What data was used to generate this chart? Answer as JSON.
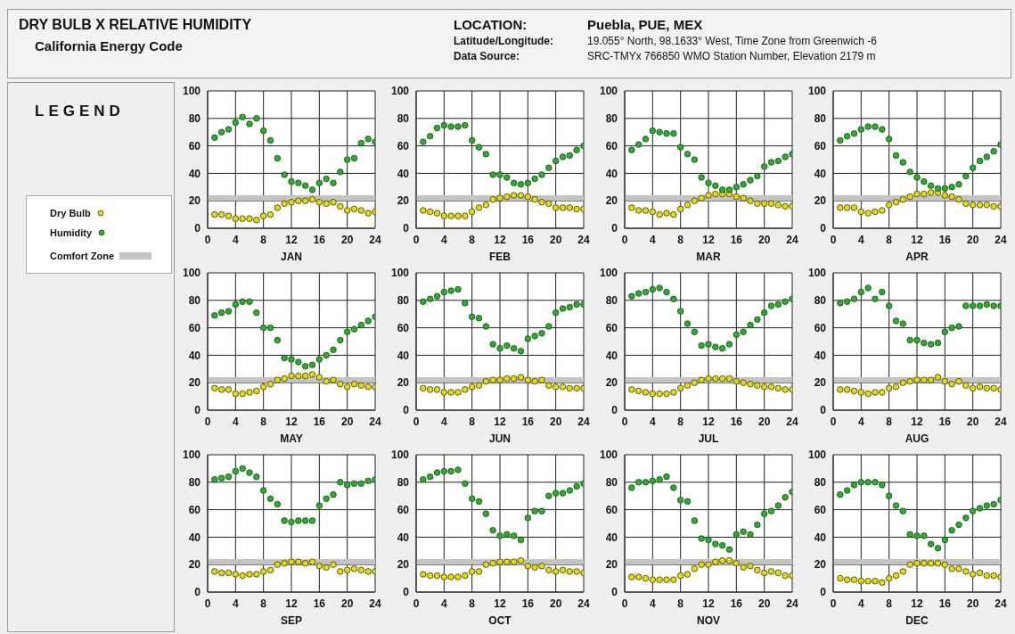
{
  "chart_data": [
    {
      "type": "scatter",
      "title": "DRY BULB  X  RELATIVE HUMIDITY",
      "subtitle": "California Energy Code",
      "annotations": [
        "LOCATION:",
        "Puebla, PUE, MEX",
        "Latitude/Longitude:",
        "19.055° North, 98.1633° West, Time Zone from Greenwich -6",
        "Data Source:",
        "SRC-TMYx    766850 WMO Station Number, Elevation 2179 m"
      ],
      "legend_title": "LEGEND",
      "legend": "left",
      "xlabel": "JAN",
      "x": [
        1,
        2,
        3,
        4,
        5,
        6,
        7,
        8,
        9,
        10,
        11,
        12,
        13,
        14,
        15,
        16,
        17,
        18,
        19,
        20,
        21,
        22,
        23,
        24
      ],
      "xlim": [
        0,
        24
      ],
      "xticks": [
        0,
        4,
        8,
        12,
        16,
        20,
        24
      ],
      "ylim": [
        0,
        100
      ],
      "yticks": [
        0,
        20,
        40,
        60,
        80,
        100
      ],
      "grid": true,
      "marker": "circle",
      "bands": [
        {
          "axis": "y",
          "from": 20,
          "to": 24,
          "label": "Comfort Zone",
          "color": "#c4c4c4"
        }
      ],
      "series": [
        {
          "name": "Dry Bulb",
          "color": "#e6dc00",
          "values": [
            10,
            10,
            9,
            7,
            7,
            7,
            6,
            9,
            10,
            15,
            18,
            19,
            20,
            20,
            21,
            19,
            18,
            19,
            16,
            13,
            14,
            13,
            11,
            12
          ]
        },
        {
          "name": "Humidity",
          "color": "#22b422",
          "values": [
            66,
            70,
            72,
            77,
            81,
            76,
            80,
            71,
            64,
            51,
            39,
            34,
            33,
            31,
            28,
            33,
            36,
            33,
            41,
            50,
            51,
            62,
            65,
            63
          ]
        }
      ]
    },
    {
      "type": "scatter",
      "xlabel": "FEB",
      "x": [
        1,
        2,
        3,
        4,
        5,
        6,
        7,
        8,
        9,
        10,
        11,
        12,
        13,
        14,
        15,
        16,
        17,
        18,
        19,
        20,
        21,
        22,
        23,
        24
      ],
      "xlim": [
        0,
        24
      ],
      "xticks": [
        0,
        4,
        8,
        12,
        16,
        20,
        24
      ],
      "ylim": [
        0,
        100
      ],
      "yticks": [
        0,
        20,
        40,
        60,
        80,
        100
      ],
      "grid": true,
      "marker": "circle",
      "bands": [
        {
          "axis": "y",
          "from": 20,
          "to": 24,
          "color": "#c4c4c4"
        }
      ],
      "series": [
        {
          "color": "#e6dc00",
          "values": [
            13,
            12,
            11,
            9,
            9,
            9,
            9,
            12,
            15,
            17,
            21,
            22,
            23,
            24,
            24,
            23,
            21,
            19,
            18,
            15,
            15,
            15,
            14,
            14
          ]
        },
        {
          "color": "#22b422",
          "values": [
            63,
            67,
            73,
            75,
            74,
            74,
            75,
            64,
            59,
            54,
            39,
            39,
            37,
            33,
            32,
            33,
            36,
            39,
            44,
            49,
            52,
            53,
            57,
            60
          ]
        }
      ]
    },
    {
      "type": "scatter",
      "xlabel": "MAR",
      "x": [
        1,
        2,
        3,
        4,
        5,
        6,
        7,
        8,
        9,
        10,
        11,
        12,
        13,
        14,
        15,
        16,
        17,
        18,
        19,
        20,
        21,
        22,
        23,
        24
      ],
      "xlim": [
        0,
        24
      ],
      "xticks": [
        0,
        4,
        8,
        12,
        16,
        20,
        24
      ],
      "ylim": [
        0,
        100
      ],
      "yticks": [
        0,
        20,
        40,
        60,
        80,
        100
      ],
      "grid": true,
      "marker": "circle",
      "bands": [
        {
          "axis": "y",
          "from": 20,
          "to": 24,
          "color": "#c4c4c4"
        }
      ],
      "series": [
        {
          "color": "#e6dc00",
          "values": [
            15,
            13,
            13,
            12,
            10,
            11,
            10,
            14,
            17,
            20,
            22,
            24,
            25,
            25,
            25,
            23,
            22,
            20,
            18,
            18,
            18,
            17,
            16,
            16
          ]
        },
        {
          "color": "#22b422",
          "values": [
            57,
            61,
            65,
            71,
            70,
            69,
            69,
            59,
            54,
            50,
            37,
            33,
            31,
            28,
            28,
            30,
            32,
            35,
            38,
            45,
            48,
            49,
            52,
            54
          ]
        }
      ]
    },
    {
      "type": "scatter",
      "xlabel": "APR",
      "x": [
        1,
        2,
        3,
        4,
        5,
        6,
        7,
        8,
        9,
        10,
        11,
        12,
        13,
        14,
        15,
        16,
        17,
        18,
        19,
        20,
        21,
        22,
        23,
        24
      ],
      "xlim": [
        0,
        24
      ],
      "xticks": [
        0,
        4,
        8,
        12,
        16,
        20,
        24
      ],
      "ylim": [
        0,
        100
      ],
      "yticks": [
        0,
        20,
        40,
        60,
        80,
        100
      ],
      "grid": true,
      "marker": "circle",
      "bands": [
        {
          "axis": "y",
          "from": 20,
          "to": 24,
          "color": "#c4c4c4"
        }
      ],
      "series": [
        {
          "color": "#e6dc00",
          "values": [
            15,
            15,
            15,
            12,
            11,
            12,
            13,
            17,
            19,
            21,
            23,
            25,
            25,
            26,
            26,
            24,
            23,
            21,
            18,
            17,
            17,
            17,
            16,
            16
          ]
        },
        {
          "color": "#22b422",
          "values": [
            64,
            67,
            69,
            72,
            74,
            74,
            72,
            65,
            53,
            48,
            41,
            37,
            34,
            31,
            29,
            29,
            30,
            32,
            38,
            44,
            49,
            52,
            56,
            61
          ]
        }
      ]
    },
    {
      "type": "scatter",
      "xlabel": "MAY",
      "x": [
        1,
        2,
        3,
        4,
        5,
        6,
        7,
        8,
        9,
        10,
        11,
        12,
        13,
        14,
        15,
        16,
        17,
        18,
        19,
        20,
        21,
        22,
        23,
        24
      ],
      "xlim": [
        0,
        24
      ],
      "xticks": [
        0,
        4,
        8,
        12,
        16,
        20,
        24
      ],
      "ylim": [
        0,
        100
      ],
      "yticks": [
        0,
        20,
        40,
        60,
        80,
        100
      ],
      "grid": true,
      "marker": "circle",
      "bands": [
        {
          "axis": "y",
          "from": 20,
          "to": 24,
          "color": "#c4c4c4"
        }
      ],
      "series": [
        {
          "color": "#e6dc00",
          "values": [
            16,
            15,
            15,
            12,
            12,
            13,
            14,
            17,
            19,
            22,
            23,
            25,
            25,
            25,
            26,
            24,
            21,
            22,
            19,
            17,
            19,
            18,
            17,
            17
          ]
        },
        {
          "color": "#22b422",
          "values": [
            69,
            71,
            72,
            77,
            79,
            79,
            71,
            60,
            60,
            51,
            38,
            37,
            35,
            32,
            33,
            37,
            40,
            44,
            51,
            57,
            59,
            62,
            65,
            68
          ]
        }
      ]
    },
    {
      "type": "scatter",
      "xlabel": "JUN",
      "x": [
        1,
        2,
        3,
        4,
        5,
        6,
        7,
        8,
        9,
        10,
        11,
        12,
        13,
        14,
        15,
        16,
        17,
        18,
        19,
        20,
        21,
        22,
        23,
        24
      ],
      "xlim": [
        0,
        24
      ],
      "xticks": [
        0,
        4,
        8,
        12,
        16,
        20,
        24
      ],
      "ylim": [
        0,
        100
      ],
      "yticks": [
        0,
        20,
        40,
        60,
        80,
        100
      ],
      "grid": true,
      "marker": "circle",
      "bands": [
        {
          "axis": "y",
          "from": 20,
          "to": 24,
          "color": "#c4c4c4"
        }
      ],
      "series": [
        {
          "color": "#e6dc00",
          "values": [
            16,
            15,
            15,
            13,
            13,
            13,
            15,
            17,
            18,
            21,
            22,
            22,
            23,
            23,
            24,
            22,
            21,
            22,
            18,
            17,
            17,
            16,
            16,
            16
          ]
        },
        {
          "color": "#22b422",
          "values": [
            79,
            81,
            83,
            86,
            87,
            88,
            78,
            68,
            67,
            61,
            48,
            45,
            47,
            45,
            43,
            52,
            54,
            56,
            61,
            71,
            74,
            75,
            77,
            77
          ]
        }
      ]
    },
    {
      "type": "scatter",
      "xlabel": "JUL",
      "x": [
        1,
        2,
        3,
        4,
        5,
        6,
        7,
        8,
        9,
        10,
        11,
        12,
        13,
        14,
        15,
        16,
        17,
        18,
        19,
        20,
        21,
        22,
        23,
        24
      ],
      "xlim": [
        0,
        24
      ],
      "xticks": [
        0,
        4,
        8,
        12,
        16,
        20,
        24
      ],
      "ylim": [
        0,
        100
      ],
      "yticks": [
        0,
        20,
        40,
        60,
        80,
        100
      ],
      "grid": true,
      "marker": "circle",
      "bands": [
        {
          "axis": "y",
          "from": 20,
          "to": 24,
          "color": "#c4c4c4"
        }
      ],
      "series": [
        {
          "color": "#e6dc00",
          "values": [
            15,
            14,
            13,
            12,
            12,
            12,
            13,
            16,
            18,
            20,
            22,
            23,
            23,
            23,
            23,
            21,
            20,
            19,
            18,
            17,
            17,
            16,
            15,
            15
          ]
        },
        {
          "color": "#22b422",
          "values": [
            83,
            85,
            86,
            88,
            89,
            86,
            81,
            72,
            63,
            57,
            47,
            48,
            46,
            45,
            48,
            55,
            57,
            62,
            66,
            71,
            76,
            77,
            79,
            81
          ]
        }
      ]
    },
    {
      "type": "scatter",
      "xlabel": "AUG",
      "x": [
        1,
        2,
        3,
        4,
        5,
        6,
        7,
        8,
        9,
        10,
        11,
        12,
        13,
        14,
        15,
        16,
        17,
        18,
        19,
        20,
        21,
        22,
        23,
        24
      ],
      "xlim": [
        0,
        24
      ],
      "xticks": [
        0,
        4,
        8,
        12,
        16,
        20,
        24
      ],
      "ylim": [
        0,
        100
      ],
      "yticks": [
        0,
        20,
        40,
        60,
        80,
        100
      ],
      "grid": true,
      "marker": "circle",
      "bands": [
        {
          "axis": "y",
          "from": 20,
          "to": 24,
          "color": "#c4c4c4"
        }
      ],
      "series": [
        {
          "color": "#e6dc00",
          "values": [
            15,
            15,
            14,
            13,
            12,
            13,
            13,
            16,
            17,
            20,
            21,
            22,
            22,
            22,
            24,
            21,
            19,
            21,
            18,
            16,
            17,
            16,
            16,
            15
          ]
        },
        {
          "color": "#22b422",
          "values": [
            78,
            79,
            81,
            86,
            89,
            81,
            86,
            76,
            65,
            63,
            51,
            51,
            49,
            48,
            49,
            57,
            60,
            61,
            76,
            76,
            76,
            77,
            76,
            76
          ]
        }
      ]
    },
    {
      "type": "scatter",
      "xlabel": "SEP",
      "x": [
        1,
        2,
        3,
        4,
        5,
        6,
        7,
        8,
        9,
        10,
        11,
        12,
        13,
        14,
        15,
        16,
        17,
        18,
        19,
        20,
        21,
        22,
        23,
        24
      ],
      "xlim": [
        0,
        24
      ],
      "xticks": [
        0,
        4,
        8,
        12,
        16,
        20,
        24
      ],
      "ylim": [
        0,
        100
      ],
      "yticks": [
        0,
        20,
        40,
        60,
        80,
        100
      ],
      "grid": true,
      "marker": "circle",
      "bands": [
        {
          "axis": "y",
          "from": 20,
          "to": 24,
          "color": "#c4c4c4"
        }
      ],
      "series": [
        {
          "color": "#e6dc00",
          "values": [
            15,
            14,
            14,
            13,
            12,
            13,
            13,
            15,
            16,
            20,
            21,
            22,
            22,
            21,
            22,
            19,
            18,
            20,
            15,
            16,
            17,
            16,
            15,
            15
          ]
        },
        {
          "color": "#22b422",
          "values": [
            82,
            83,
            84,
            88,
            90,
            87,
            84,
            74,
            68,
            64,
            52,
            51,
            52,
            52,
            52,
            63,
            68,
            71,
            80,
            78,
            79,
            79,
            81,
            82
          ]
        }
      ]
    },
    {
      "type": "scatter",
      "xlabel": "OCT",
      "x": [
        1,
        2,
        3,
        4,
        5,
        6,
        7,
        8,
        9,
        10,
        11,
        12,
        13,
        14,
        15,
        16,
        17,
        18,
        19,
        20,
        21,
        22,
        23,
        24
      ],
      "xlim": [
        0,
        24
      ],
      "xticks": [
        0,
        4,
        8,
        12,
        16,
        20,
        24
      ],
      "ylim": [
        0,
        100
      ],
      "yticks": [
        0,
        20,
        40,
        60,
        80,
        100
      ],
      "grid": true,
      "marker": "circle",
      "bands": [
        {
          "axis": "y",
          "from": 20,
          "to": 24,
          "color": "#c4c4c4"
        }
      ],
      "series": [
        {
          "color": "#e6dc00",
          "values": [
            13,
            12,
            12,
            11,
            11,
            11,
            12,
            15,
            15,
            20,
            21,
            22,
            22,
            22,
            23,
            19,
            18,
            19,
            16,
            15,
            16,
            15,
            15,
            14
          ]
        },
        {
          "color": "#22b422",
          "values": [
            82,
            84,
            87,
            88,
            88,
            89,
            79,
            68,
            66,
            57,
            45,
            41,
            42,
            41,
            38,
            54,
            59,
            59,
            70,
            72,
            72,
            74,
            77,
            79
          ]
        }
      ]
    },
    {
      "type": "scatter",
      "xlabel": "NOV",
      "x": [
        1,
        2,
        3,
        4,
        5,
        6,
        7,
        8,
        9,
        10,
        11,
        12,
        13,
        14,
        15,
        16,
        17,
        18,
        19,
        20,
        21,
        22,
        23,
        24
      ],
      "xlim": [
        0,
        24
      ],
      "xticks": [
        0,
        4,
        8,
        12,
        16,
        20,
        24
      ],
      "ylim": [
        0,
        100
      ],
      "yticks": [
        0,
        20,
        40,
        60,
        80,
        100
      ],
      "grid": true,
      "marker": "circle",
      "bands": [
        {
          "axis": "y",
          "from": 20,
          "to": 24,
          "color": "#c4c4c4"
        }
      ],
      "series": [
        {
          "color": "#e6dc00",
          "values": [
            11,
            11,
            10,
            9,
            9,
            9,
            9,
            12,
            13,
            17,
            20,
            20,
            22,
            23,
            23,
            21,
            18,
            19,
            16,
            14,
            15,
            14,
            12,
            12
          ]
        },
        {
          "color": "#22b422",
          "values": [
            76,
            80,
            80,
            81,
            82,
            84,
            76,
            67,
            66,
            52,
            39,
            38,
            35,
            34,
            31,
            42,
            44,
            42,
            49,
            57,
            59,
            63,
            69,
            73
          ]
        }
      ]
    },
    {
      "type": "scatter",
      "xlabel": "DEC",
      "x": [
        1,
        2,
        3,
        4,
        5,
        6,
        7,
        8,
        9,
        10,
        11,
        12,
        13,
        14,
        15,
        16,
        17,
        18,
        19,
        20,
        21,
        22,
        23,
        24
      ],
      "xlim": [
        0,
        24
      ],
      "xticks": [
        0,
        4,
        8,
        12,
        16,
        20,
        24
      ],
      "ylim": [
        0,
        100
      ],
      "yticks": [
        0,
        20,
        40,
        60,
        80,
        100
      ],
      "grid": true,
      "marker": "circle",
      "bands": [
        {
          "axis": "y",
          "from": 20,
          "to": 24,
          "color": "#c4c4c4"
        }
      ],
      "series": [
        {
          "color": "#e6dc00",
          "values": [
            10,
            9,
            9,
            8,
            8,
            8,
            7,
            10,
            12,
            15,
            20,
            21,
            21,
            21,
            21,
            20,
            17,
            17,
            15,
            13,
            14,
            12,
            12,
            11
          ]
        },
        {
          "color": "#22b422",
          "values": [
            71,
            74,
            78,
            80,
            80,
            80,
            78,
            70,
            63,
            59,
            42,
            41,
            41,
            35,
            32,
            38,
            45,
            49,
            54,
            59,
            61,
            63,
            64,
            67
          ]
        }
      ]
    }
  ]
}
